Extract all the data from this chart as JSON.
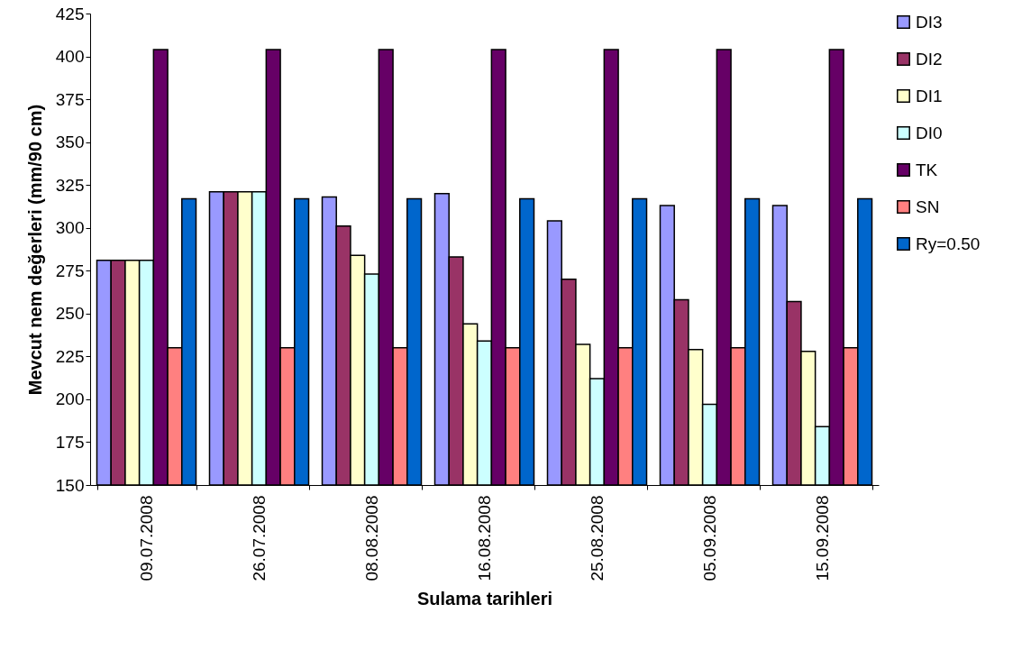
{
  "chart_data": {
    "type": "bar",
    "xlabel": "Sulama tarihleri",
    "ylabel": "Mevcut nem değerleri (mm/90 cm)",
    "categories": [
      "09.07.2008",
      "26.07.2008",
      "08.08.2008",
      "16.08.2008",
      "25.08.2008",
      "05.09.2008",
      "15.09.2008"
    ],
    "series": [
      {
        "name": "DI3",
        "color": "#9999ff",
        "values": [
          281,
          321,
          318,
          320,
          304,
          313,
          313
        ]
      },
      {
        "name": "DI2",
        "color": "#993366",
        "values": [
          281,
          321,
          301,
          283,
          270,
          258,
          257
        ]
      },
      {
        "name": "DI1",
        "color": "#ffffcc",
        "values": [
          281,
          321,
          284,
          244,
          232,
          229,
          228
        ]
      },
      {
        "name": "DI0",
        "color": "#ccffff",
        "values": [
          281,
          321,
          273,
          234,
          212,
          197,
          184
        ]
      },
      {
        "name": "TK",
        "color": "#660066",
        "values": [
          404,
          404,
          404,
          404,
          404,
          404,
          404
        ]
      },
      {
        "name": "SN",
        "color": "#ff8080",
        "values": [
          230,
          230,
          230,
          230,
          230,
          230,
          230
        ]
      },
      {
        "name": "Ry=0.50",
        "color": "#0066cc",
        "values": [
          317,
          317,
          317,
          317,
          317,
          317,
          317
        ]
      }
    ],
    "ylim": [
      150,
      425
    ],
    "yticks": [
      150,
      175,
      200,
      225,
      250,
      275,
      300,
      325,
      350,
      375,
      400,
      425
    ],
    "grid": false,
    "legend": "right"
  }
}
